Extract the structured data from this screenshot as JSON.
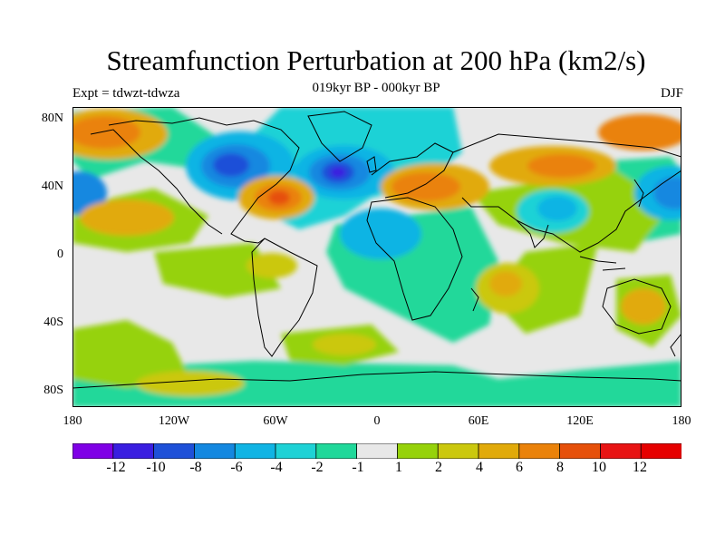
{
  "title": "Streamfunction Perturbation at 200 hPa (km2/s)",
  "subtitle": "019kyr BP - 000kyr BP",
  "left_label": "Expt = tdwzt-tdwza",
  "right_label": "DJF",
  "lat_ticks": [
    "80N",
    "40N",
    "0",
    "40S",
    "80S"
  ],
  "lon_ticks": [
    "180",
    "120W",
    "60W",
    "0",
    "60E",
    "120E",
    "180"
  ],
  "colorbar": {
    "labels": [
      "-12",
      "-10",
      "-8",
      "-6",
      "-4",
      "-2",
      "-1",
      "1",
      "2",
      "4",
      "6",
      "8",
      "10",
      "12"
    ],
    "colors": [
      "#7f00e6",
      "#3a1ee0",
      "#1e50d8",
      "#1488e0",
      "#10b4e4",
      "#1ed2d6",
      "#20d89a",
      "#e8e8e8",
      "#96d20a",
      "#cbc80e",
      "#e1aa0a",
      "#ea820a",
      "#e6500a",
      "#e81414",
      "#e60000"
    ]
  },
  "map_data": {
    "type": "filled-contour",
    "region": "global",
    "lon_range": [
      -180,
      180
    ],
    "lat_range": [
      -90,
      90
    ],
    "features": [
      {
        "lon": -150,
        "lat": 70,
        "value": 8
      },
      {
        "lon": -140,
        "lat": 25,
        "value": 7
      },
      {
        "lon": -90,
        "lat": 50,
        "value": -9
      },
      {
        "lon": -60,
        "lat": 33,
        "value": 9
      },
      {
        "lon": -25,
        "lat": 48,
        "value": -11
      },
      {
        "lon": 15,
        "lat": 40,
        "value": 8
      },
      {
        "lon": 25,
        "lat": 20,
        "value": -4
      },
      {
        "lon": 100,
        "lat": 50,
        "value": 7
      },
      {
        "lon": 95,
        "lat": 30,
        "value": -5
      },
      {
        "lon": 160,
        "lat": 70,
        "value": 7
      },
      {
        "lon": 175,
        "lat": 37,
        "value": -8
      },
      {
        "lon": 150,
        "lat": -30,
        "value": 5
      },
      {
        "lon": 60,
        "lat": -20,
        "value": 4
      },
      {
        "lon": -20,
        "lat": -45,
        "value": 4
      }
    ]
  }
}
